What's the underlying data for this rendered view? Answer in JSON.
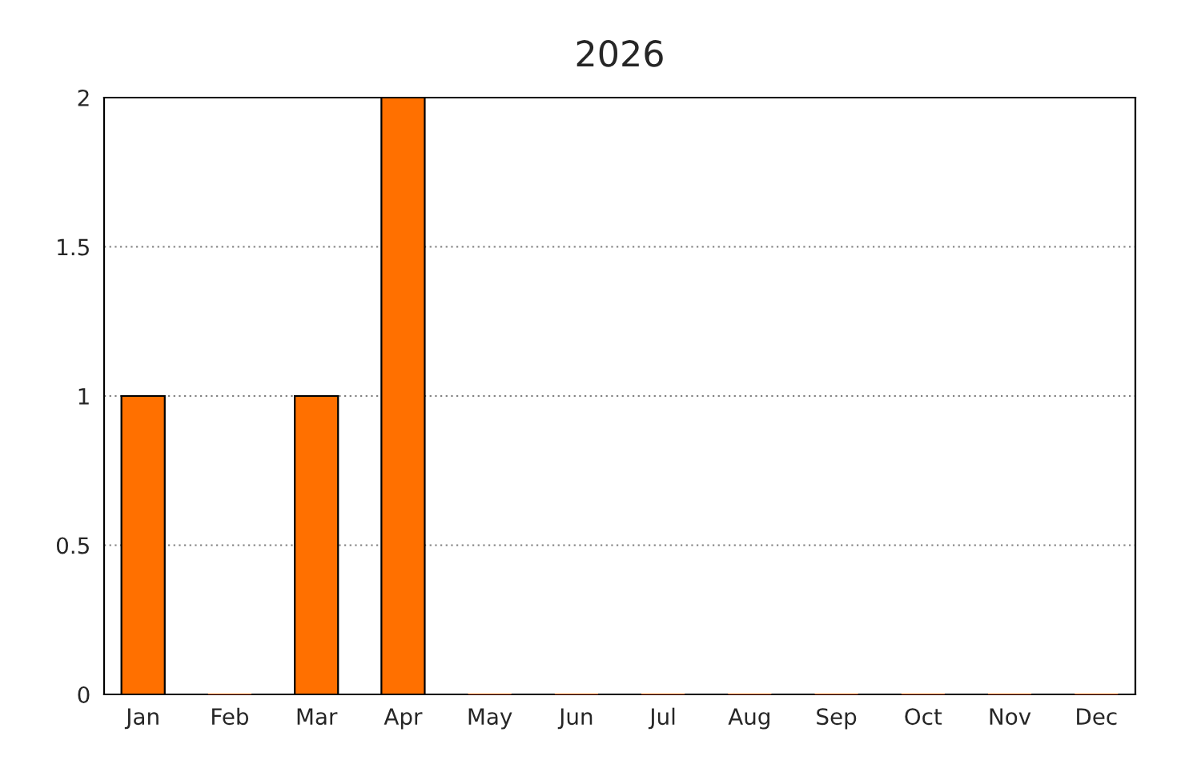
{
  "chart_data": {
    "type": "bar",
    "title": "2026",
    "categories": [
      "Jan",
      "Feb",
      "Mar",
      "Apr",
      "May",
      "Jun",
      "Jul",
      "Aug",
      "Sep",
      "Oct",
      "Nov",
      "Dec"
    ],
    "values": [
      1,
      0,
      1,
      2,
      0,
      0,
      0,
      0,
      0,
      0,
      0,
      0
    ],
    "color": "#ff7000",
    "ylim": [
      0,
      2
    ],
    "yticks": [
      0,
      0.5,
      1,
      1.5,
      2
    ],
    "grid": "y"
  }
}
